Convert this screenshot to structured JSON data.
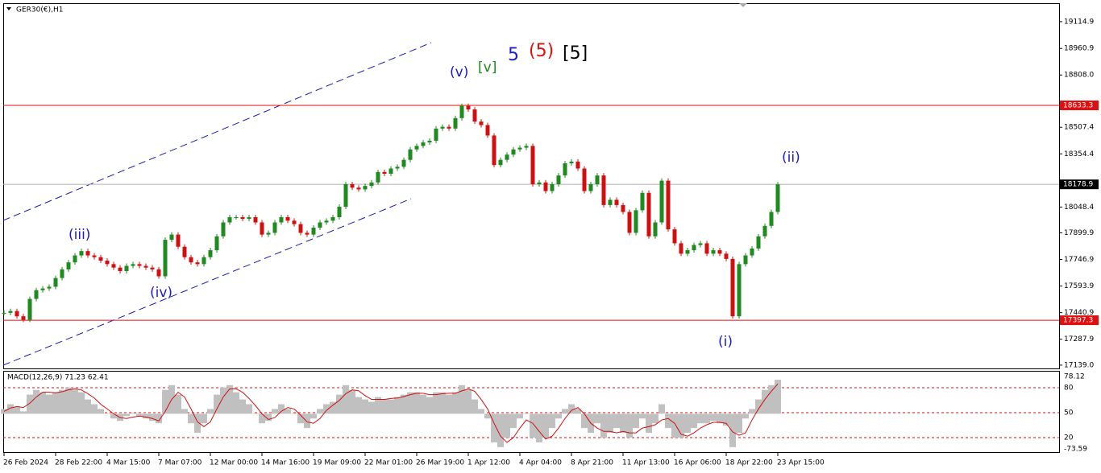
{
  "chart_data": {
    "type": "candlestick",
    "title": "GER30(€),H1",
    "categories": [
      "26 Feb 2024",
      null,
      null,
      null,
      null,
      null,
      null,
      null,
      "28 Feb 22:00",
      null,
      null,
      null,
      null,
      null,
      null,
      null,
      "4 Mar 15:00",
      null,
      null,
      null,
      null,
      null,
      null,
      null,
      "7 Mar 07:00",
      null,
      null,
      null,
      null,
      null,
      null,
      null,
      "12 Mar 00:00",
      null,
      null,
      null,
      null,
      null,
      null,
      null,
      "14 Mar 16:00",
      null,
      null,
      null,
      null,
      null,
      null,
      null,
      "19 Mar 09:00",
      null,
      null,
      null,
      null,
      null,
      null,
      null,
      "22 Mar 01:00",
      null,
      null,
      null,
      null,
      null,
      null,
      null,
      "26 Mar 19:00",
      null,
      null,
      null,
      null,
      null,
      null,
      null,
      "1 Apr 12:00",
      null,
      null,
      null,
      null,
      null,
      null,
      null,
      "4 Apr 04:00",
      null,
      null,
      null,
      null,
      null,
      null,
      null,
      "8 Apr 21:00",
      null,
      null,
      null,
      null,
      null,
      null,
      null,
      "11 Apr 13:00",
      null,
      null,
      null,
      null,
      null,
      null,
      null,
      "16 Apr 06:00",
      null,
      null,
      null,
      null,
      null,
      null,
      null,
      "18 Apr 22:00",
      null,
      null,
      null,
      null,
      null,
      null,
      null,
      "23 Apr 15:00"
    ],
    "closes": [
      17440,
      17450,
      17420,
      17400,
      17520,
      17570,
      17580,
      17590,
      17640,
      17690,
      17730,
      17770,
      17795,
      17770,
      17760,
      17740,
      17720,
      17700,
      17680,
      17710,
      17720,
      17710,
      17700,
      17690,
      17650,
      17860,
      17890,
      17820,
      17760,
      17730,
      17720,
      17760,
      17800,
      17880,
      17960,
      17990,
      17990,
      17980,
      17990,
      17960,
      17890,
      17900,
      17960,
      17990,
      17970,
      17950,
      17900,
      17890,
      17930,
      17960,
      17970,
      17990,
      18050,
      18180,
      18160,
      18150,
      18170,
      18190,
      18250,
      18240,
      18270,
      18280,
      18320,
      18380,
      18400,
      18420,
      18430,
      18500,
      18510,
      18500,
      18560,
      18630,
      18610,
      18540,
      18520,
      18460,
      18290,
      18320,
      18350,
      18380,
      18390,
      18400,
      18180,
      18190,
      18140,
      18180,
      18230,
      18300,
      18310,
      18270,
      18140,
      18180,
      18230,
      18060,
      18090,
      18060,
      18020,
      17900,
      18030,
      18130,
      17880,
      17960,
      18200,
      17920,
      17840,
      17780,
      17800,
      17830,
      17840,
      17780,
      17800,
      17780,
      17750,
      17420,
      17720,
      17770,
      17810,
      17880,
      17940,
      18020,
      18178.9
    ],
    "up_color": "#1f8a1f",
    "down_color": "#d01010",
    "ylim": [
      17120,
      19221
    ],
    "yticks": [
      19114.9,
      18960.9,
      {
        "value": 18808,
        "label": "18808.0"
      },
      18507.4,
      18354.4,
      18048.4,
      17899.9,
      17746.9,
      17593.9,
      17440.9,
      17287.9,
      {
        "value": 17139,
        "label": "17139.0"
      }
    ],
    "levels": [
      {
        "value": 18633.3,
        "color": "#e01010"
      },
      {
        "value": 18178.9,
        "color": "#b0b0b0"
      },
      {
        "value": 17397.3,
        "color": "#e01010"
      }
    ],
    "annotations": [
      {
        "text": "(iii)",
        "color": "#1a1ad0"
      },
      {
        "text": "(iv)",
        "color": "#1a1ad0"
      },
      {
        "text": "(v)",
        "color": "#1a1ad0"
      },
      {
        "text": "[v]",
        "color": "#1a8a1a"
      },
      {
        "text": "5",
        "color": "#1a1ad0"
      },
      {
        "text": "(5)",
        "color": "#e01010"
      },
      {
        "text": "[5]",
        "color": "#000000"
      },
      {
        "text": "(ii)",
        "color": "#1a1ad0"
      },
      {
        "text": "(i)",
        "color": "#1a1ad0"
      }
    ],
    "macd": {
      "label": "MACD(12,26,9) 71.23 62.41",
      "ylim": [
        -80.3,
        88.2
      ],
      "yticks": [
        78.12,
        -73.59
      ],
      "y2lim": [
        2.6,
        99.4
      ],
      "y2ticks": [
        80,
        50,
        20
      ],
      "series": [
        {
          "name": "MACD",
          "color": "#c0c0c0",
          "values": [
            10,
            20,
            15,
            5,
            40,
            50,
            45,
            40,
            45,
            50,
            55,
            50,
            45,
            30,
            20,
            10,
            0,
            -10,
            -15,
            -5,
            0,
            -5,
            -10,
            -15,
            -20,
            50,
            60,
            40,
            10,
            -20,
            -40,
            -20,
            10,
            40,
            55,
            60,
            45,
            30,
            20,
            0,
            -20,
            -15,
            10,
            20,
            10,
            0,
            -20,
            -30,
            -10,
            10,
            20,
            25,
            40,
            60,
            50,
            35,
            30,
            25,
            35,
            30,
            30,
            35,
            40,
            45,
            45,
            40,
            35,
            45,
            45,
            40,
            45,
            60,
            50,
            30,
            10,
            -10,
            -60,
            -70,
            -50,
            -30,
            -10,
            0,
            -50,
            -60,
            -50,
            -30,
            -10,
            10,
            20,
            10,
            -30,
            -40,
            -20,
            -50,
            -40,
            -30,
            -40,
            -50,
            -30,
            -10,
            -40,
            -20,
            20,
            -30,
            -50,
            -50,
            -40,
            -30,
            -20,
            -20,
            -15,
            -20,
            -25,
            -70,
            -40,
            -10,
            10,
            30,
            50,
            60,
            71.23
          ]
        },
        {
          "name": "Signal",
          "color": "#d01010",
          "values": [
            5,
            12,
            15,
            13,
            22,
            35,
            45,
            45,
            44,
            46,
            50,
            52,
            50,
            42,
            33,
            20,
            10,
            0,
            -8,
            -10,
            -7,
            -5,
            -7,
            -10,
            -15,
            5,
            30,
            45,
            35,
            10,
            -17,
            -27,
            -17,
            10,
            35,
            52,
            52,
            45,
            32,
            17,
            0,
            -12,
            -8,
            5,
            13,
            10,
            -3,
            -17,
            -20,
            -10,
            7,
            18,
            28,
            42,
            50,
            48,
            38,
            30,
            30,
            30,
            32,
            33,
            36,
            40,
            43,
            43,
            40,
            40,
            42,
            43,
            43,
            48,
            52,
            47,
            30,
            10,
            -20,
            -47,
            -60,
            -50,
            -30,
            -13,
            -20,
            -37,
            -53,
            -47,
            -30,
            -10,
            7,
            13,
            0,
            -20,
            -30,
            -37,
            -37,
            -40,
            -37,
            -40,
            -40,
            -30,
            -27,
            -23,
            -13,
            -10,
            -20,
            -43,
            -47,
            -40,
            -30,
            -23,
            -18,
            -18,
            -20,
            -38,
            -45,
            -40,
            -13,
            10,
            30,
            47,
            62.41
          ]
        }
      ]
    }
  }
}
